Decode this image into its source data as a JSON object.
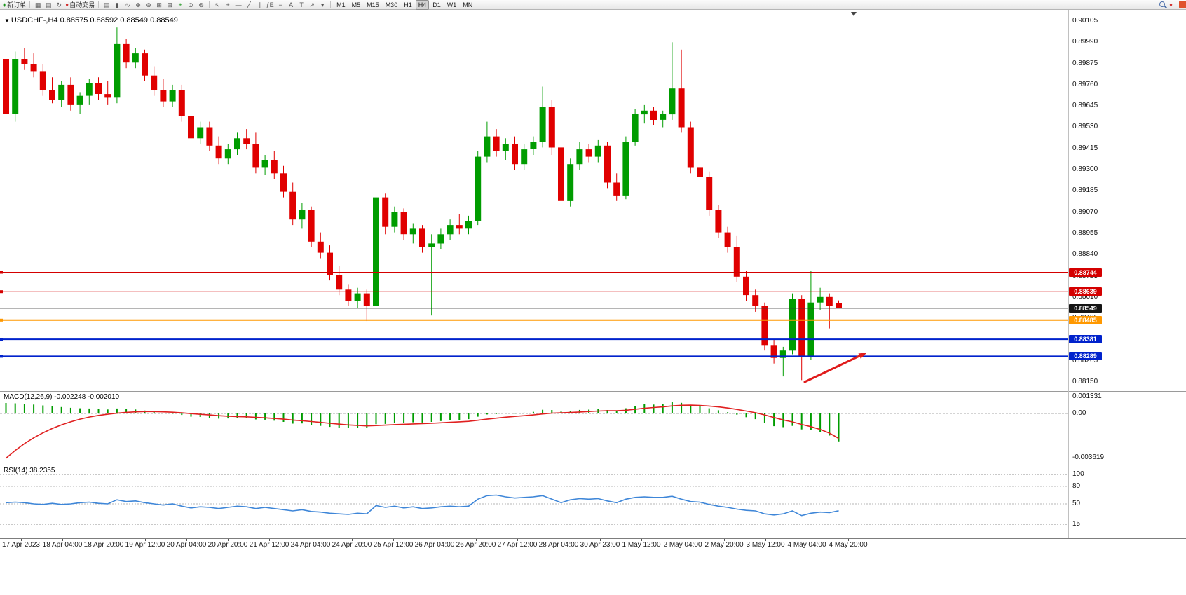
{
  "toolbar": {
    "new_order_label": "新订单",
    "auto_trading_label": "自动交易",
    "left_icons": [
      {
        "name": "charts-icon",
        "glyph": "▦"
      },
      {
        "name": "profiles-icon",
        "glyph": "▤"
      },
      {
        "name": "refresh-icon",
        "glyph": "↻"
      }
    ],
    "chart_icons": [
      {
        "name": "bar-chart-icon",
        "glyph": "▤"
      },
      {
        "name": "candlestick-icon",
        "glyph": "▮"
      },
      {
        "name": "line-chart-icon",
        "glyph": "∿"
      },
      {
        "name": "zoom-in-icon",
        "glyph": "⊕"
      },
      {
        "name": "zoom-out-icon",
        "glyph": "⊖"
      },
      {
        "name": "tile-windows-icon",
        "glyph": "⊞"
      },
      {
        "name": "cascade-windows-icon",
        "glyph": "⊟"
      },
      {
        "name": "indicators-icon",
        "glyph": "+",
        "color": "#0a8f0a"
      },
      {
        "name": "periods-icon",
        "glyph": "⊙"
      },
      {
        "name": "templates-icon",
        "glyph": "⊚"
      }
    ],
    "tool_icons": [
      {
        "name": "cursor-icon",
        "glyph": "↖"
      },
      {
        "name": "crosshair-icon",
        "glyph": "+"
      },
      {
        "name": "horizontal-line-icon",
        "glyph": "—"
      },
      {
        "name": "trendline-icon",
        "glyph": "╱"
      },
      {
        "name": "channel-icon",
        "glyph": "∥"
      },
      {
        "name": "fibonacci-icon",
        "glyph": "ƒE"
      },
      {
        "name": "shapes-icon",
        "glyph": "≡"
      },
      {
        "name": "text-icon",
        "glyph": "A"
      },
      {
        "name": "text-label-icon",
        "glyph": "T"
      },
      {
        "name": "arrow-tool-icon",
        "glyph": "↗"
      },
      {
        "name": "dropdown-icon",
        "glyph": "▾"
      }
    ],
    "right_icons": [
      {
        "name": "search-icon",
        "glyph": "mag"
      },
      {
        "name": "notification-icon",
        "glyph": "●",
        "color": "#d23030"
      }
    ],
    "timeframes": [
      "M1",
      "M5",
      "M15",
      "M30",
      "H1",
      "H4",
      "D1",
      "W1",
      "MN"
    ],
    "active_timeframe": "H4"
  },
  "chart": {
    "symbol_info": {
      "dropdown_glyph": "▼",
      "symbol": "USDCHF-,H4",
      "ohlc": "0.88575 0.88592 0.88549 0.88549"
    }
  },
  "chart_data": {
    "type": "candlestick",
    "symbol": "USDCHF-",
    "timeframe": "H4",
    "colors": {
      "bull": "#009c00",
      "bear": "#e00000",
      "macd_hist": "#009c00",
      "macd_signal": "#e02020",
      "rsi_line": "#3e86d8",
      "price_line": "#333333",
      "arrow": "#e01b1b",
      "grid_dash": "#a8a8a8"
    },
    "price_axis": {
      "max": 0.90105,
      "min": 0.8815,
      "labels": [
        "0.90105",
        "0.89990",
        "0.89875",
        "0.89760",
        "0.89645",
        "0.89530",
        "0.89415",
        "0.89300",
        "0.89185",
        "0.89070",
        "0.88955",
        "0.88840",
        "0.88725",
        "0.88610",
        "0.88495",
        "0.88380",
        "0.88265",
        "0.88150"
      ]
    },
    "hlines": [
      {
        "price": 0.88744,
        "label": "0.88744",
        "color": "#d40000",
        "width": 1,
        "tag_bg": "#d40000"
      },
      {
        "price": 0.88639,
        "label": "0.88639",
        "color": "#d40000",
        "width": 1,
        "tag_bg": "#d40000"
      },
      {
        "price": 0.88549,
        "label": "0.88549",
        "color": "#3a3a3a",
        "width": 1,
        "tag_bg": "#151515",
        "is_current_price": true
      },
      {
        "price": 0.88485,
        "label": "0.88485",
        "color": "#ff9800",
        "width": 2,
        "tag_bg": "#ff9800"
      },
      {
        "price": 0.88381,
        "label": "0.88381",
        "color": "#0022cc",
        "width": 2,
        "tag_bg": "#0022cc"
      },
      {
        "price": 0.88289,
        "label": "0.88289",
        "color": "#0022cc",
        "width": 2,
        "tag_bg": "#0022cc"
      }
    ],
    "candles": [
      [
        0.899,
        0.8993,
        0.895,
        0.896
      ],
      [
        0.896,
        0.8994,
        0.8956,
        0.899
      ],
      [
        0.899,
        0.8996,
        0.8984,
        0.8987
      ],
      [
        0.8987,
        0.8993,
        0.898,
        0.8983
      ],
      [
        0.8983,
        0.8987,
        0.897,
        0.8973
      ],
      [
        0.8973,
        0.898,
        0.8966,
        0.8968
      ],
      [
        0.8968,
        0.8978,
        0.8964,
        0.8976
      ],
      [
        0.8976,
        0.898,
        0.8962,
        0.8965
      ],
      [
        0.8965,
        0.8972,
        0.896,
        0.897
      ],
      [
        0.897,
        0.8979,
        0.8965,
        0.8977
      ],
      [
        0.8977,
        0.898,
        0.8968,
        0.8971
      ],
      [
        0.8971,
        0.8978,
        0.8965,
        0.8969
      ],
      [
        0.8969,
        0.9007,
        0.8966,
        0.8998
      ],
      [
        0.8998,
        0.9001,
        0.8985,
        0.8988
      ],
      [
        0.8988,
        0.8996,
        0.8985,
        0.8993
      ],
      [
        0.8993,
        0.8995,
        0.8978,
        0.8981
      ],
      [
        0.8981,
        0.8986,
        0.897,
        0.8973
      ],
      [
        0.8973,
        0.8979,
        0.8964,
        0.8967
      ],
      [
        0.8967,
        0.8976,
        0.8964,
        0.8973
      ],
      [
        0.8973,
        0.8976,
        0.8956,
        0.8959
      ],
      [
        0.8959,
        0.8964,
        0.8944,
        0.8947
      ],
      [
        0.8947,
        0.8956,
        0.8944,
        0.8953
      ],
      [
        0.8953,
        0.8956,
        0.894,
        0.8943
      ],
      [
        0.8943,
        0.8948,
        0.8933,
        0.8936
      ],
      [
        0.8936,
        0.8944,
        0.8933,
        0.8941
      ],
      [
        0.8941,
        0.895,
        0.8938,
        0.8947
      ],
      [
        0.8947,
        0.8952,
        0.8941,
        0.8944
      ],
      [
        0.8944,
        0.895,
        0.8928,
        0.8931
      ],
      [
        0.8931,
        0.8938,
        0.8927,
        0.8935
      ],
      [
        0.8935,
        0.894,
        0.8925,
        0.8928
      ],
      [
        0.8928,
        0.8932,
        0.8915,
        0.8918
      ],
      [
        0.8918,
        0.8923,
        0.89,
        0.8903
      ],
      [
        0.8903,
        0.8912,
        0.8898,
        0.8908
      ],
      [
        0.8908,
        0.891,
        0.8888,
        0.8891
      ],
      [
        0.8891,
        0.8896,
        0.8882,
        0.8885
      ],
      [
        0.8885,
        0.8889,
        0.887,
        0.8873
      ],
      [
        0.8873,
        0.8878,
        0.8862,
        0.8865
      ],
      [
        0.8865,
        0.8868,
        0.8856,
        0.8859
      ],
      [
        0.8859,
        0.8866,
        0.8855,
        0.8863
      ],
      [
        0.8863,
        0.8865,
        0.8848,
        0.8856
      ],
      [
        0.8856,
        0.8918,
        0.8854,
        0.8915
      ],
      [
        0.8915,
        0.8917,
        0.8895,
        0.8899
      ],
      [
        0.8899,
        0.891,
        0.8896,
        0.8907
      ],
      [
        0.8907,
        0.8909,
        0.8892,
        0.8895
      ],
      [
        0.8895,
        0.8901,
        0.889,
        0.8898
      ],
      [
        0.8898,
        0.89,
        0.8885,
        0.8888
      ],
      [
        0.8888,
        0.8895,
        0.8851,
        0.889
      ],
      [
        0.889,
        0.8898,
        0.8887,
        0.8895
      ],
      [
        0.8895,
        0.8903,
        0.8892,
        0.89
      ],
      [
        0.89,
        0.8906,
        0.8895,
        0.8898
      ],
      [
        0.8898,
        0.8905,
        0.8895,
        0.8902
      ],
      [
        0.8902,
        0.894,
        0.89,
        0.8937
      ],
      [
        0.8937,
        0.8956,
        0.8934,
        0.8948
      ],
      [
        0.8948,
        0.8952,
        0.8937,
        0.894
      ],
      [
        0.894,
        0.8947,
        0.8935,
        0.8944
      ],
      [
        0.8944,
        0.8948,
        0.893,
        0.8933
      ],
      [
        0.8933,
        0.8944,
        0.893,
        0.8941
      ],
      [
        0.8941,
        0.8948,
        0.8938,
        0.8945
      ],
      [
        0.8945,
        0.8975,
        0.8942,
        0.8964
      ],
      [
        0.8964,
        0.8968,
        0.8938,
        0.8942
      ],
      [
        0.8942,
        0.8945,
        0.8905,
        0.8913
      ],
      [
        0.8913,
        0.8936,
        0.891,
        0.8933
      ],
      [
        0.8933,
        0.8945,
        0.893,
        0.8941
      ],
      [
        0.8941,
        0.8944,
        0.8934,
        0.8937
      ],
      [
        0.8937,
        0.8946,
        0.8934,
        0.8943
      ],
      [
        0.8943,
        0.8945,
        0.892,
        0.8923
      ],
      [
        0.8923,
        0.8928,
        0.8913,
        0.8916
      ],
      [
        0.8916,
        0.8948,
        0.8914,
        0.8945
      ],
      [
        0.8945,
        0.8963,
        0.8943,
        0.896
      ],
      [
        0.896,
        0.8965,
        0.8955,
        0.8962
      ],
      [
        0.8962,
        0.8964,
        0.8954,
        0.8957
      ],
      [
        0.8957,
        0.8962,
        0.8953,
        0.896
      ],
      [
        0.896,
        0.8999,
        0.8957,
        0.8974
      ],
      [
        0.8974,
        0.8995,
        0.895,
        0.8953
      ],
      [
        0.8953,
        0.8956,
        0.8928,
        0.8931
      ],
      [
        0.8931,
        0.8934,
        0.8923,
        0.8926
      ],
      [
        0.8926,
        0.8929,
        0.8905,
        0.8908
      ],
      [
        0.8908,
        0.8911,
        0.8893,
        0.8896
      ],
      [
        0.8896,
        0.8899,
        0.8885,
        0.8888
      ],
      [
        0.8888,
        0.8894,
        0.8869,
        0.8872
      ],
      [
        0.8872,
        0.8875,
        0.8859,
        0.8862
      ],
      [
        0.8862,
        0.8865,
        0.8853,
        0.8856
      ],
      [
        0.8856,
        0.8858,
        0.8832,
        0.8835
      ],
      [
        0.8835,
        0.8838,
        0.8825,
        0.8828
      ],
      [
        0.8828,
        0.8834,
        0.8818,
        0.8832
      ],
      [
        0.8832,
        0.8863,
        0.883,
        0.886
      ],
      [
        0.886,
        0.8862,
        0.8816,
        0.8829
      ],
      [
        0.8829,
        0.8875,
        0.8827,
        0.8858
      ],
      [
        0.8858,
        0.8866,
        0.8854,
        0.8861
      ],
      [
        0.8861,
        0.8863,
        0.8844,
        0.8856
      ],
      [
        0.88575,
        0.88592,
        0.88549,
        0.88549
      ]
    ],
    "macd": {
      "label": "MACD(12,26,9)",
      "values": "-0.002248 -0.002010",
      "axis": [
        "0.001331",
        "0.00",
        "-0.003619"
      ],
      "max": 0.001331,
      "min": -0.003619,
      "main": [
        0.00085,
        0.00082,
        0.00078,
        0.00072,
        0.00065,
        0.00058,
        0.00052,
        0.00046,
        0.00042,
        0.0004,
        0.00036,
        0.00032,
        0.0004,
        0.00038,
        0.00032,
        0.00024,
        0.00014,
        4e-05,
        -2e-05,
        -0.00012,
        -0.00026,
        -0.00028,
        -0.00034,
        -0.00042,
        -0.0004,
        -0.00035,
        -0.00038,
        -0.00048,
        -0.0005,
        -0.00058,
        -0.00068,
        -0.00082,
        -0.0008,
        -0.00092,
        -0.001,
        -0.00108,
        -0.00113,
        -0.00116,
        -0.00113,
        -0.00114,
        -0.00086,
        -0.00084,
        -0.00076,
        -0.00077,
        -0.00071,
        -0.00073,
        -0.00068,
        -0.00061,
        -0.00054,
        -0.00052,
        -0.00046,
        -0.00026,
        -8e-05,
        -4e-05,
        3e-05,
        -1e-05,
        6e-05,
        0.00013,
        0.0003,
        0.00028,
        0.00016,
        0.00021,
        0.00029,
        0.00031,
        0.00036,
        0.00028,
        0.00022,
        0.00042,
        0.00062,
        0.00074,
        0.00072,
        0.00075,
        0.00092,
        0.00086,
        0.00068,
        0.00058,
        0.00042,
        0.00026,
        0.0001,
        -0.0001,
        -0.0003,
        -0.00046,
        -0.00078,
        -0.00102,
        -0.0011,
        -0.001,
        -0.00128,
        -0.00132,
        -0.00148,
        -0.00178,
        -0.00225
      ],
      "signal": [
        -0.0036,
        -0.00298,
        -0.00243,
        -0.00196,
        -0.00156,
        -0.00121,
        -0.00092,
        -0.00067,
        -0.00046,
        -0.00029,
        -0.00016,
        -6e-05,
        2e-05,
        9e-05,
        0.00013,
        0.00015,
        0.00015,
        0.00013,
        0.0001,
        5e-05,
        -1e-05,
        -7e-05,
        -0.00012,
        -0.00018,
        -0.00022,
        -0.00025,
        -0.00027,
        -0.00031,
        -0.00035,
        -0.0004,
        -0.00046,
        -0.00053,
        -0.00058,
        -0.00065,
        -0.00072,
        -0.00079,
        -0.00086,
        -0.00092,
        -0.00096,
        -0.001,
        -0.00097,
        -0.00094,
        -0.0009,
        -0.00087,
        -0.00084,
        -0.00082,
        -0.00079,
        -0.00075,
        -0.00071,
        -0.00067,
        -0.00063,
        -0.00055,
        -0.00046,
        -0.00038,
        -0.0003,
        -0.00024,
        -0.00018,
        -0.00012,
        -4e-05,
        3e-05,
        5e-05,
        8e-05,
        0.00012,
        0.00016,
        0.0002,
        0.00022,
        0.00022,
        0.00026,
        0.00034,
        0.00042,
        0.00048,
        0.00053,
        0.00061,
        0.00066,
        0.00067,
        0.00065,
        0.0006,
        0.00053,
        0.00044,
        0.00033,
        0.0002,
        6e-05,
        -0.00012,
        -0.00032,
        -0.00052,
        -0.00068,
        -0.00088,
        -0.00106,
        -0.00128,
        -0.00158,
        -0.00201
      ]
    },
    "rsi": {
      "label": "RSI(14)",
      "value": "38.2355",
      "axis": [
        "100",
        "80",
        "50",
        "15"
      ],
      "levels": [
        100,
        80,
        50,
        15
      ],
      "values": [
        52,
        53,
        52,
        50,
        49,
        51,
        49,
        50,
        52,
        53,
        51,
        50,
        57,
        54,
        55,
        52,
        50,
        48,
        50,
        46,
        43,
        45,
        44,
        42,
        44,
        46,
        45,
        42,
        44,
        42,
        40,
        38,
        40,
        37,
        36,
        34,
        33,
        32,
        34,
        33,
        47,
        44,
        46,
        43,
        45,
        42,
        43,
        45,
        46,
        45,
        46,
        58,
        64,
        65,
        62,
        60,
        61,
        62,
        64,
        58,
        52,
        57,
        59,
        58,
        59,
        55,
        52,
        58,
        61,
        62,
        61,
        61,
        63,
        58,
        54,
        53,
        49,
        46,
        44,
        41,
        39,
        38,
        33,
        31,
        33,
        38,
        30,
        34,
        36,
        35,
        38.24
      ]
    },
    "time_labels": [
      "17 Apr 2023",
      "18 Apr 04:00",
      "18 Apr 20:00",
      "19 Apr 12:00",
      "20 Apr 04:00",
      "20 Apr 20:00",
      "21 Apr 12:00",
      "24 Apr 04:00",
      "24 Apr 20:00",
      "25 Apr 12:00",
      "26 Apr 04:00",
      "26 Apr 20:00",
      "27 Apr 12:00",
      "28 Apr 04:00",
      "30 Apr 23:00",
      "1 May 12:00",
      "2 May 04:00",
      "2 May 20:00",
      "3 May 12:00",
      "4 May 04:00",
      "4 May 20:00"
    ],
    "arrow": {
      "color": "#e01b1b"
    }
  }
}
